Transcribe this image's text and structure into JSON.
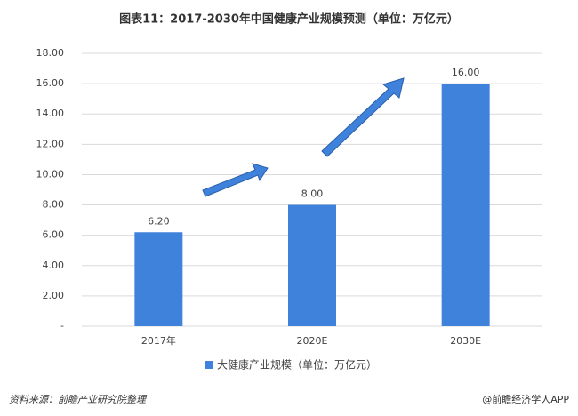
{
  "chart_data": {
    "type": "bar",
    "title": "图表11：2017-2030年中国健康产业规模预测（单位：万亿元）",
    "categories": [
      "2017年",
      "2020E",
      "2030E"
    ],
    "series": [
      {
        "name": "大健康产业规模（单位：万亿元）",
        "color": "#3f82dc",
        "values": [
          6.2,
          8,
          16
        ],
        "value_labels": [
          "6.20",
          "8.00",
          "16.00"
        ]
      }
    ],
    "ylim": [
      0,
      18
    ],
    "yticks": [
      {
        "value": 0,
        "label": "-"
      },
      {
        "value": 2,
        "label": "2.00"
      },
      {
        "value": 4,
        "label": "4.00"
      },
      {
        "value": 6,
        "label": "6.00"
      },
      {
        "value": 8,
        "label": "8.00"
      },
      {
        "value": 10,
        "label": "10.00"
      },
      {
        "value": 12,
        "label": "12.00"
      },
      {
        "value": 14,
        "label": "14.00"
      },
      {
        "value": 16,
        "label": "16.00"
      },
      {
        "value": 18,
        "label": "18.00"
      }
    ],
    "grid": true,
    "legend": "bottom",
    "source": "资料来源：前瞻产业研究院整理",
    "credit": "@前瞻经济学人APP"
  }
}
